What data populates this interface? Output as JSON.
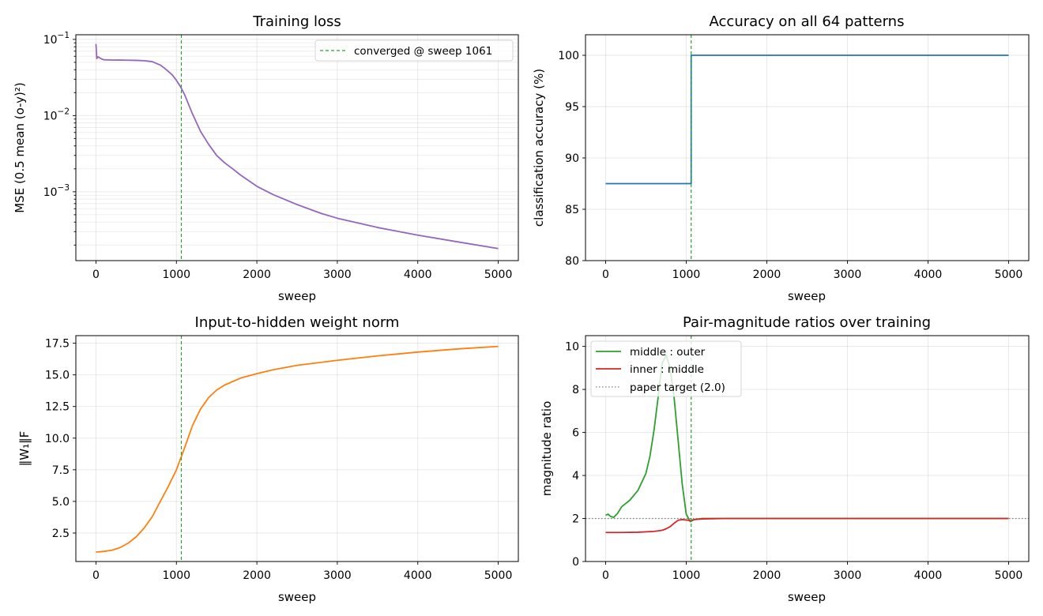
{
  "chart_data": [
    {
      "id": "loss",
      "type": "line",
      "title": "Training loss",
      "xlabel": "sweep",
      "ylabel": "MSE  (0.5 mean (o-y)²)",
      "yscale": "log",
      "xlim": [
        -250,
        5250
      ],
      "ylim": [
        0.000125,
        0.115
      ],
      "xticks": [
        0,
        1000,
        2000,
        3000,
        4000,
        5000
      ],
      "xtick_labels": [
        "0",
        "1000",
        "2000",
        "3000",
        "4000",
        "5000"
      ],
      "yticks": [
        0.001,
        0.01,
        0.1
      ],
      "ytick_labels": [
        {
          "base": "10",
          "exp": "−3"
        },
        {
          "base": "10",
          "exp": "−2"
        },
        {
          "base": "10",
          "exp": "−1"
        }
      ],
      "grid": true,
      "legend_position": "upper-right",
      "series": [
        {
          "color": "#9467bd",
          "x": [
            0,
            10,
            25,
            50,
            75,
            100,
            150,
            200,
            300,
            400,
            500,
            600,
            700,
            800,
            850,
            900,
            950,
            1000,
            1050,
            1100,
            1200,
            1300,
            1400,
            1500,
            1600,
            1700,
            1800,
            2000,
            2200,
            2500,
            2800,
            3000,
            3500,
            4000,
            4500,
            5000
          ],
          "y": [
            0.087,
            0.056,
            0.059,
            0.057,
            0.055,
            0.054,
            0.0538,
            0.0536,
            0.0535,
            0.0533,
            0.053,
            0.0525,
            0.051,
            0.046,
            0.042,
            0.038,
            0.034,
            0.029,
            0.024,
            0.019,
            0.0105,
            0.0062,
            0.0042,
            0.003,
            0.0024,
            0.002,
            0.00165,
            0.00118,
            0.00092,
            0.00068,
            0.00052,
            0.00045,
            0.00034,
            0.00027,
            0.00022,
            0.00018
          ]
        }
      ],
      "vline": {
        "x": 1061,
        "color": "#2ca02c",
        "label": "converged @ sweep 1061"
      }
    },
    {
      "id": "acc",
      "type": "line",
      "title": "Accuracy on all 64 patterns",
      "xlabel": "sweep",
      "ylabel": "classification accuracy (%)",
      "xlim": [
        -250,
        5250
      ],
      "ylim": [
        80,
        102
      ],
      "xticks": [
        0,
        1000,
        2000,
        3000,
        4000,
        5000
      ],
      "xtick_labels": [
        "0",
        "1000",
        "2000",
        "3000",
        "4000",
        "5000"
      ],
      "yticks": [
        80,
        85,
        90,
        95,
        100
      ],
      "ytick_labels": [
        "80",
        "85",
        "90",
        "95",
        "100"
      ],
      "grid": true,
      "series": [
        {
          "color": "#1f77b4",
          "x": [
            0,
            1061,
            1061,
            5000
          ],
          "y": [
            87.5,
            87.5,
            100,
            100
          ]
        }
      ],
      "vline": {
        "x": 1061,
        "color": "#2ca02c"
      }
    },
    {
      "id": "norm",
      "type": "line",
      "title": "Input-to-hidden weight norm",
      "xlabel": "sweep",
      "ylabel": "‖W₁‖F",
      "xlim": [
        -250,
        5250
      ],
      "ylim": [
        0.25,
        18.1
      ],
      "xticks": [
        0,
        1000,
        2000,
        3000,
        4000,
        5000
      ],
      "xtick_labels": [
        "0",
        "1000",
        "2000",
        "3000",
        "4000",
        "5000"
      ],
      "yticks": [
        2.5,
        5.0,
        7.5,
        10.0,
        12.5,
        15.0,
        17.5
      ],
      "ytick_labels": [
        "2.5",
        "5.0",
        "7.5",
        "10.0",
        "12.5",
        "15.0",
        "17.5"
      ],
      "grid": true,
      "series": [
        {
          "color": "#ff7f0e",
          "x": [
            0,
            100,
            200,
            300,
            400,
            500,
            600,
            700,
            800,
            900,
            1000,
            1100,
            1200,
            1300,
            1400,
            1500,
            1600,
            1800,
            2000,
            2200,
            2500,
            3000,
            3500,
            4000,
            4500,
            5000
          ],
          "y": [
            1.0,
            1.05,
            1.15,
            1.35,
            1.7,
            2.2,
            2.9,
            3.8,
            5.0,
            6.2,
            7.5,
            9.2,
            11.0,
            12.3,
            13.2,
            13.8,
            14.2,
            14.75,
            15.1,
            15.4,
            15.75,
            16.15,
            16.5,
            16.8,
            17.05,
            17.25
          ]
        }
      ],
      "vline": {
        "x": 1061,
        "color": "#2ca02c"
      }
    },
    {
      "id": "ratio",
      "type": "line",
      "title": "Pair-magnitude ratios over training",
      "xlabel": "sweep",
      "ylabel": "magnitude ratio",
      "xlim": [
        -250,
        5250
      ],
      "ylim": [
        0,
        10.5
      ],
      "xticks": [
        0,
        1000,
        2000,
        3000,
        4000,
        5000
      ],
      "xtick_labels": [
        "0",
        "1000",
        "2000",
        "3000",
        "4000",
        "5000"
      ],
      "yticks": [
        0,
        2,
        4,
        6,
        8,
        10
      ],
      "ytick_labels": [
        "0",
        "2",
        "4",
        "6",
        "8",
        "10"
      ],
      "grid": true,
      "legend_position": "upper-left",
      "series": [
        {
          "name": "middle : outer",
          "color": "#2ca02c",
          "x": [
            0,
            30,
            60,
            100,
            150,
            200,
            300,
            400,
            500,
            550,
            600,
            650,
            700,
            750,
            800,
            850,
            900,
            950,
            1000,
            1050,
            1100,
            1200,
            1500,
            2000,
            3000,
            5000
          ],
          "y": [
            2.15,
            2.2,
            2.1,
            2.05,
            2.25,
            2.55,
            2.85,
            3.3,
            4.1,
            4.9,
            6.1,
            7.6,
            9.2,
            9.6,
            9.0,
            7.6,
            5.6,
            3.6,
            2.2,
            1.85,
            1.95,
            2.0,
            2.0,
            2.0,
            2.0,
            2.0
          ]
        },
        {
          "name": "inner : middle",
          "color": "#d62728",
          "x": [
            0,
            200,
            400,
            600,
            700,
            750,
            800,
            850,
            900,
            950,
            1000,
            1050,
            1100,
            1200,
            1500,
            2000,
            3000,
            5000
          ],
          "y": [
            1.35,
            1.35,
            1.36,
            1.4,
            1.45,
            1.52,
            1.62,
            1.78,
            1.92,
            1.95,
            1.93,
            1.9,
            1.95,
            1.98,
            2.0,
            2.0,
            2.0,
            2.0
          ]
        }
      ],
      "hline": {
        "y": 2.0,
        "color": "#7f7f7f",
        "label": "paper target (2.0)"
      },
      "vline": {
        "x": 1061,
        "color": "#2ca02c"
      }
    }
  ]
}
